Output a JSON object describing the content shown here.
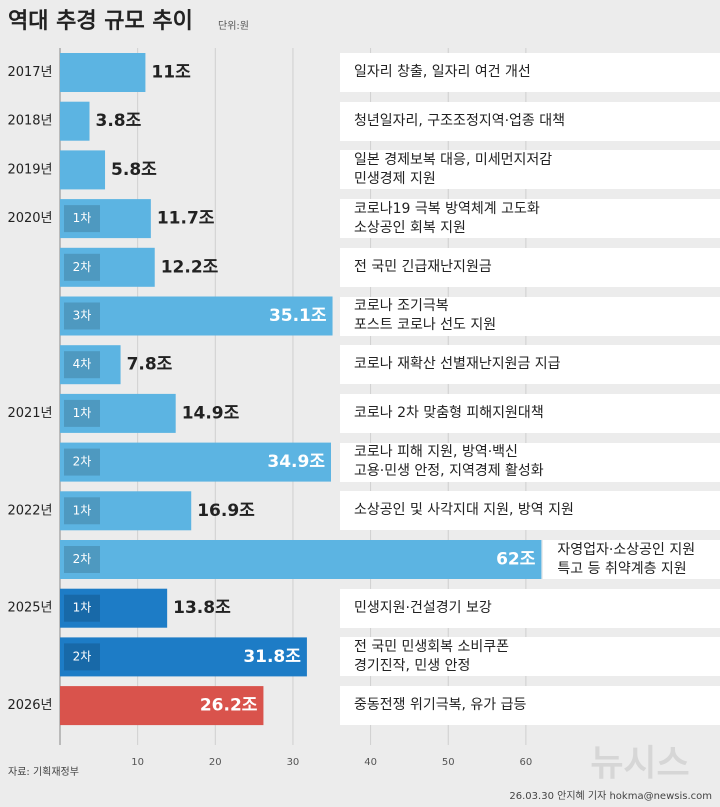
{
  "chart_data": {
    "type": "barh",
    "title": "역대 추경 규모 추이",
    "unit": "단위:원",
    "categories": [
      "2017년",
      "2018년",
      "2019년",
      "2020년",
      null,
      null,
      null,
      "2021년",
      null,
      "2022년",
      null,
      "2025년",
      null,
      "2026년"
    ],
    "rounds": [
      null,
      null,
      null,
      "1차",
      "2차",
      "3차",
      "4차",
      "1차",
      "2차",
      "1차",
      "2차",
      "1차",
      "2차",
      null
    ],
    "values": [
      11,
      3.8,
      5.8,
      11.7,
      12.2,
      35.1,
      7.8,
      14.9,
      34.9,
      16.9,
      62,
      13.8,
      31.8,
      26.2
    ],
    "value_labels": [
      "11조",
      "3.8조",
      "5.8조",
      "11.7조",
      "12.2조",
      "35.1조",
      "7.8조",
      "14.9조",
      "34.9조",
      "16.9조",
      "62조",
      "13.8조",
      "31.8조",
      "26.2조"
    ],
    "descriptions": [
      "일자리 창출, 일자리 여건 개선",
      "청년일자리, 구조조정지역·업종 대책",
      "일본 경제보복 대응, 미세먼지저감\n민생경제 지원",
      "코로나19 극복 방역체계 고도화\n소상공인 회복 지원",
      "전 국민 긴급재난지원금",
      "코로나 조기극복\n포스트 코로나 선도 지원",
      "코로나 재확산 선별재난지원금 지급",
      "코로나 2차 맞춤형 피해지원대책",
      "코로나 피해 지원, 방역·백신\n고용·민생 안정, 지역경제 활성화",
      "소상공인 및 사각지대 지원,  방역 지원",
      "자영업자·소상공인 지원\n특고 등 취약계층 지원",
      "민생지원·건설경기 보강",
      "전 국민 민생회복 소비쿠폰\n경기진작, 민생 안정",
      "중동전쟁 위기극복, 유가 급등"
    ],
    "colors": [
      "#5cb4e2",
      "#5cb4e2",
      "#5cb4e2",
      "#5cb4e2",
      "#5cb4e2",
      "#5cb4e2",
      "#5cb4e2",
      "#5cb4e2",
      "#5cb4e2",
      "#5cb4e2",
      "#5cb4e2",
      "#1d7cc6",
      "#1d7cc6",
      "#d9534c"
    ],
    "xlim": [
      0,
      85
    ],
    "xticks": [
      10,
      20,
      30,
      40,
      50,
      60
    ],
    "grid": true,
    "source": "자료: 기획재정부",
    "credit": "26.03.30 안지혜 기자 hokma@newsis.com",
    "watermark": "뉴시스"
  }
}
